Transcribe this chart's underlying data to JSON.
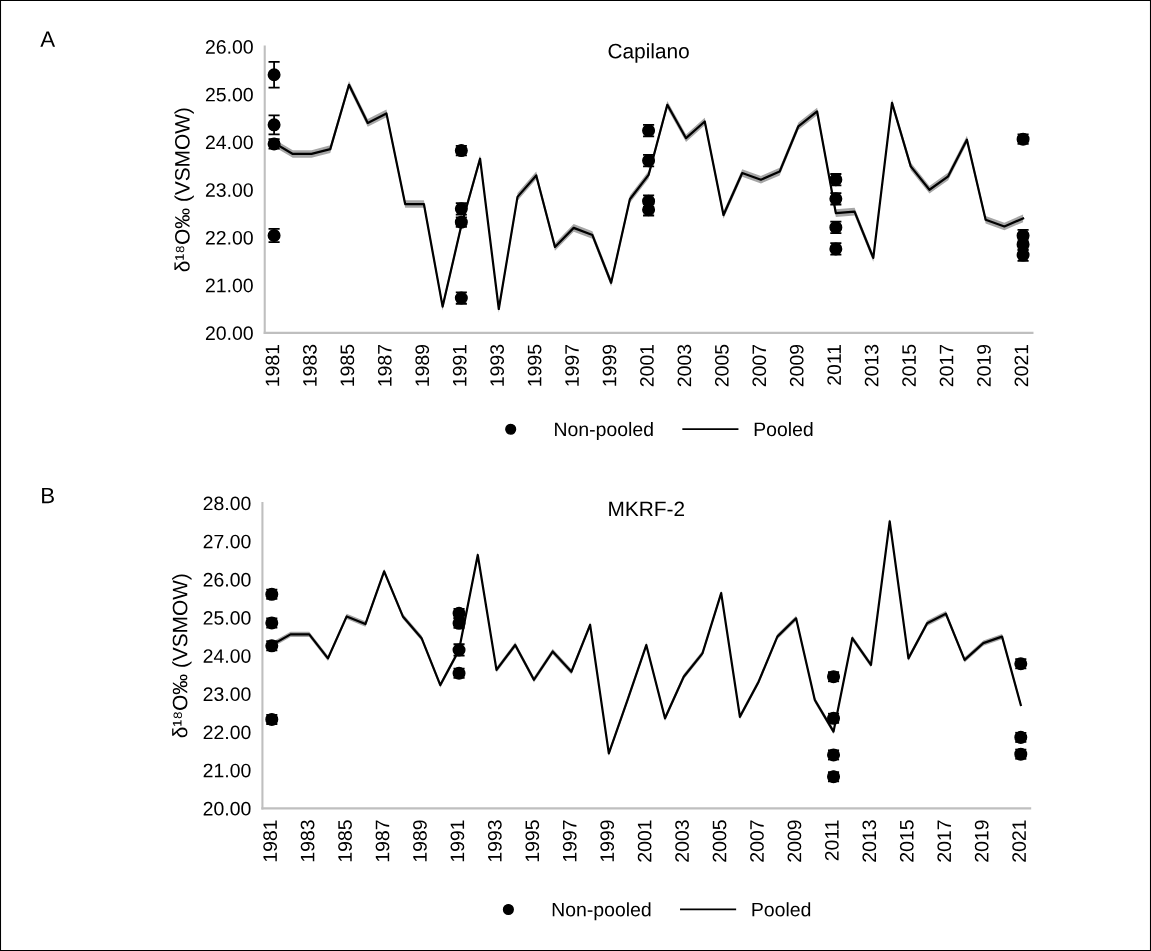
{
  "chart_data": [
    {
      "type": "line",
      "title": "Capilano",
      "ylabel": "δ¹⁸O‰ (VSMOW)",
      "annotations": [
        "A"
      ],
      "x": [
        1981,
        1982,
        1983,
        1984,
        1985,
        1986,
        1987,
        1988,
        1989,
        1990,
        1991,
        1992,
        1993,
        1994,
        1995,
        1996,
        1997,
        1998,
        1999,
        2000,
        2001,
        2002,
        2003,
        2004,
        2005,
        2006,
        2007,
        2008,
        2009,
        2010,
        2011,
        2012,
        2013,
        2014,
        2015,
        2016,
        2017,
        2018,
        2019,
        2020,
        2021
      ],
      "xlim": [
        1980.5,
        2021.5
      ],
      "xticks": [
        1981,
        1983,
        1985,
        1987,
        1989,
        1991,
        1993,
        1995,
        1997,
        1999,
        2001,
        2003,
        2005,
        2007,
        2009,
        2011,
        2013,
        2015,
        2017,
        2019,
        2021
      ],
      "ylim": [
        20,
        26
      ],
      "yticks": [
        {
          "value": 20,
          "label": "20.00"
        },
        {
          "value": 21,
          "label": "21.00"
        },
        {
          "value": 22,
          "label": "22.00"
        },
        {
          "value": 23,
          "label": "23.00"
        },
        {
          "value": 24,
          "label": "24.00"
        },
        {
          "value": 25,
          "label": "25.00"
        },
        {
          "value": 26,
          "label": "26.00"
        }
      ],
      "grid": false,
      "legend": "bottom",
      "series": [
        {
          "name": "Non-pooled",
          "type": "scatter",
          "color": "#000000",
          "marker": "circle",
          "x": [
            1981,
            1981,
            1981,
            1981,
            1991,
            1991,
            1991,
            1991,
            2001,
            2001,
            2001,
            2001,
            2011,
            2011,
            2011,
            2011,
            2021,
            2021,
            2021,
            2021
          ],
          "values": [
            25.41,
            24.36,
            23.96,
            22.04,
            23.82,
            22.6,
            22.32,
            20.73,
            24.24,
            23.61,
            22.76,
            22.58,
            23.21,
            22.81,
            22.21,
            21.76,
            24.06,
            22.04,
            21.85,
            21.63
          ],
          "errors": [
            0.27,
            0.2,
            0.1,
            0.14,
            0.1,
            0.12,
            0.1,
            0.12,
            0.12,
            0.12,
            0.12,
            0.12,
            0.12,
            0.12,
            0.12,
            0.12,
            0.1,
            0.12,
            0.12,
            0.12
          ]
        },
        {
          "name": "Pooled",
          "color": "#000000",
          "line_style": "solid",
          "values": [
            23.98,
            23.75,
            23.75,
            23.85,
            25.2,
            24.4,
            24.6,
            22.7,
            22.7,
            20.55,
            22.25,
            23.65,
            20.5,
            22.85,
            23.3,
            21.8,
            22.2,
            22.05,
            21.05,
            22.8,
            23.31,
            24.78,
            24.08,
            24.43,
            22.47,
            23.35,
            23.21,
            23.38,
            24.33,
            24.64,
            22.51,
            22.54,
            21.57,
            24.82,
            23.49,
            23.0,
            23.28,
            24.05,
            22.37,
            22.23,
            22.4
          ],
          "lower": [
            23.9,
            23.67,
            23.67,
            23.77,
            25.12,
            24.32,
            24.52,
            22.62,
            22.62,
            20.47,
            22.17,
            23.57,
            20.42,
            22.77,
            23.22,
            21.72,
            22.12,
            21.97,
            20.97,
            22.72,
            23.23,
            24.7,
            24.0,
            24.35,
            22.39,
            23.27,
            23.13,
            23.3,
            24.25,
            24.56,
            22.43,
            22.46,
            21.49,
            24.74,
            23.41,
            22.92,
            23.2,
            23.97,
            22.29,
            22.15,
            22.32
          ],
          "upper": [
            24.06,
            23.83,
            23.83,
            23.93,
            25.28,
            24.48,
            24.68,
            22.78,
            22.78,
            20.63,
            22.33,
            23.73,
            20.58,
            22.93,
            23.38,
            21.88,
            22.28,
            22.13,
            21.13,
            22.88,
            23.39,
            24.86,
            24.16,
            24.51,
            22.55,
            23.43,
            23.29,
            23.46,
            24.41,
            24.72,
            22.59,
            22.62,
            21.65,
            24.9,
            23.57,
            23.08,
            23.36,
            24.13,
            22.45,
            22.31,
            22.48
          ]
        }
      ]
    },
    {
      "type": "line",
      "title": "MKRF-2",
      "ylabel": "δ¹⁸O‰ (VSMOW)",
      "annotations": [
        "B"
      ],
      "x": [
        1981,
        1982,
        1983,
        1984,
        1985,
        1986,
        1987,
        1988,
        1989,
        1990,
        1991,
        1992,
        1993,
        1994,
        1995,
        1996,
        1997,
        1998,
        1999,
        2000,
        2001,
        2002,
        2003,
        2004,
        2005,
        2006,
        2007,
        2008,
        2009,
        2010,
        2011,
        2012,
        2013,
        2014,
        2015,
        2016,
        2017,
        2018,
        2019,
        2020,
        2021
      ],
      "xlim": [
        1980.5,
        2021.5
      ],
      "xticks": [
        1981,
        1983,
        1985,
        1987,
        1989,
        1991,
        1993,
        1995,
        1997,
        1999,
        2001,
        2003,
        2005,
        2007,
        2009,
        2011,
        2013,
        2015,
        2017,
        2019,
        2021
      ],
      "ylim": [
        20,
        28
      ],
      "yticks": [
        {
          "value": 20,
          "label": "20.00"
        },
        {
          "value": 21,
          "label": "21.00"
        },
        {
          "value": 22,
          "label": "22.00"
        },
        {
          "value": 23,
          "label": "23.00"
        },
        {
          "value": 24,
          "label": "24.00"
        },
        {
          "value": 25,
          "label": "25.00"
        },
        {
          "value": 26,
          "label": "26.00"
        },
        {
          "value": 27,
          "label": "27.00"
        },
        {
          "value": 28,
          "label": "28.00"
        }
      ],
      "grid": false,
      "legend": "bottom",
      "series": [
        {
          "name": "Non-pooled",
          "type": "scatter",
          "color": "#000000",
          "marker": "circle",
          "x": [
            1981,
            1981,
            1981,
            1981,
            1991,
            1991,
            1991,
            1991,
            2011,
            2011,
            2011,
            2011,
            2021,
            2021,
            2021
          ],
          "values": [
            25.61,
            24.86,
            24.26,
            22.33,
            25.11,
            24.85,
            24.15,
            23.54,
            23.45,
            22.36,
            21.4,
            20.83,
            23.79,
            21.86,
            21.42
          ],
          "errors": [
            0.12,
            0.12,
            0.12,
            0.12,
            0.12,
            0.12,
            0.15,
            0.12,
            0.12,
            0.12,
            0.12,
            0.12,
            0.12,
            0.12,
            0.12
          ]
        },
        {
          "name": "Pooled",
          "color": "#000000",
          "line_style": "solid",
          "values": [
            24.28,
            24.56,
            24.56,
            23.93,
            25.03,
            24.83,
            26.21,
            25.03,
            24.46,
            23.23,
            24.15,
            26.64,
            23.63,
            24.28,
            23.37,
            24.11,
            23.58,
            24.81,
            21.44,
            22.84,
            24.28,
            22.36,
            23.45,
            24.06,
            25.64,
            22.4,
            23.32,
            24.5,
            24.98,
            22.84,
            22.01,
            24.46,
            23.76,
            27.52,
            23.93,
            24.85,
            25.1,
            23.89,
            24.33,
            24.5,
            22.71
          ],
          "lower": [
            24.21,
            24.49,
            24.49,
            23.86,
            24.96,
            24.76,
            26.14,
            24.96,
            24.39,
            23.16,
            24.08,
            26.57,
            23.56,
            24.21,
            23.3,
            24.04,
            23.51,
            24.74,
            21.37,
            22.77,
            24.21,
            22.29,
            23.38,
            23.99,
            25.57,
            22.33,
            23.25,
            24.43,
            24.91,
            22.77,
            21.94,
            24.39,
            23.69,
            27.45,
            23.86,
            24.78,
            25.03,
            23.82,
            24.26,
            24.43,
            22.64
          ],
          "upper": [
            24.35,
            24.63,
            24.63,
            24.0,
            25.1,
            24.9,
            26.28,
            25.1,
            24.53,
            23.3,
            24.22,
            26.71,
            23.7,
            24.35,
            23.44,
            24.18,
            23.65,
            24.88,
            21.51,
            22.91,
            24.35,
            22.43,
            23.52,
            24.13,
            25.71,
            22.47,
            23.39,
            24.57,
            25.05,
            22.91,
            22.08,
            24.53,
            23.83,
            27.59,
            24.0,
            24.92,
            25.17,
            23.96,
            24.4,
            24.57,
            22.78
          ]
        }
      ]
    }
  ]
}
